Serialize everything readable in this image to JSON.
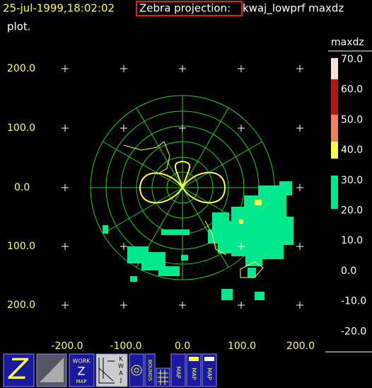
{
  "header": {
    "timestamp": "25-jul-1999,18:02:02",
    "projection_label": "Zebra projection:",
    "description": "kwaj_lowprf maxdz",
    "continuation": "plot."
  },
  "plot": {
    "y_labels": [
      "200.0",
      "100.0",
      "0.0",
      "100.0",
      "200.0"
    ],
    "x_labels": [
      "-200.0",
      "-100.0",
      "0.0",
      "100.0",
      "200.0"
    ]
  },
  "colorbar": {
    "title": "maxdz",
    "labels": [
      "70.0",
      "60.0",
      "50.0",
      "40.0",
      "30.0",
      "20.0",
      "10.0",
      "0.0",
      "-10.0",
      "-20.0"
    ]
  },
  "toolbar": {
    "buttons": [
      "Z",
      "WORK",
      "MAP",
      "K",
      "W",
      "A",
      "J",
      "BOUNDS",
      "MAP",
      "MAP",
      "MAP"
    ]
  }
}
